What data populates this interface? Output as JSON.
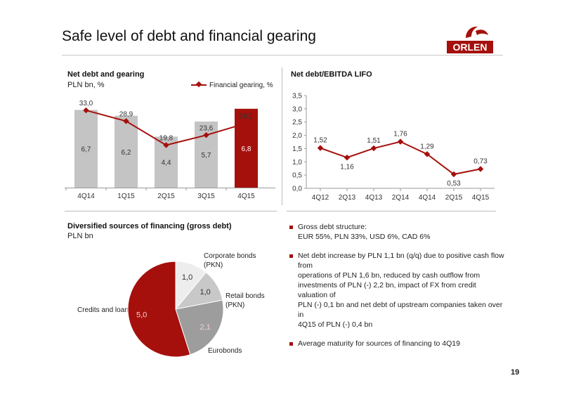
{
  "page": {
    "title": "Safe level of debt and financial gearing",
    "logo_text": "ORLEN",
    "page_number": "19",
    "accent_color": "#a5100c",
    "grey_color": "#c4c4c4"
  },
  "chart_data": [
    {
      "type": "bar",
      "title": "Net debt and gearing",
      "subtitle": "PLN bn, %",
      "categories": [
        "4Q14",
        "1Q15",
        "2Q15",
        "3Q15",
        "4Q15"
      ],
      "series": [
        {
          "values": [
            6.7,
            6.2,
            4.4,
            5.7,
            6.8
          ],
          "labels": [
            "6,7",
            "6,2",
            "4,4",
            "5,7",
            "6,8"
          ]
        },
        {
          "name": "Financial gearing, %",
          "type": "line",
          "values": [
            33.0,
            28.9,
            19.8,
            23.6,
            28.1
          ],
          "labels": [
            "33,0",
            "28,9",
            "19,8",
            "23,6",
            "28,1"
          ]
        }
      ],
      "highlight_index": 4,
      "legend_position": "top-right"
    },
    {
      "type": "line",
      "title": "Net debt/EBITDA LIFO",
      "categories": [
        "4Q12",
        "2Q13",
        "4Q13",
        "2Q14",
        "4Q14",
        "2Q15",
        "4Q15"
      ],
      "values": [
        1.52,
        1.16,
        1.51,
        1.76,
        1.29,
        0.53,
        0.73
      ],
      "labels": [
        "1,52",
        "1,16",
        "1,51",
        "1,76",
        "1,29",
        "0,53",
        "0,73"
      ],
      "ylim": [
        0,
        3.5
      ],
      "yticks": [
        "0,0",
        "0,5",
        "1,0",
        "1,5",
        "2,0",
        "2,5",
        "3,0",
        "3,5"
      ],
      "grid": false
    },
    {
      "type": "pie",
      "title": "Diversified sources of financing (gross debt)",
      "subtitle": "PLN bn",
      "slices": [
        {
          "name": "Credits and loans",
          "value": 5.0,
          "label": "5,0",
          "color": "#a5100c"
        },
        {
          "name": "Corporate bonds (PKN)",
          "value": 1.0,
          "label": "1,0",
          "color": "#ededed"
        },
        {
          "name": "Retail bonds (PKN)",
          "value": 1.0,
          "label": "1,0",
          "color": "#c8c8c8"
        },
        {
          "name": "Eurobonds",
          "value": 2.1,
          "label": "2,1",
          "color": "#9d9d9d"
        }
      ],
      "category_lines": {
        "corporate": [
          "Corporate bonds",
          "(PKN)"
        ],
        "retail": [
          "Retail bonds",
          "(PKN)"
        ]
      }
    }
  ],
  "bullets": [
    {
      "lines": [
        "Gross debt structure:",
        "EUR 55%, PLN 33%, USD 6%, CAD 6%"
      ]
    },
    {
      "lines": [
        "Net debt increase by PLN 1,1 bn (q/q) due to positive cash flow from",
        "operations of PLN 1,6 bn, reduced by cash outflow from",
        "investments of PLN (-) 2,2 bn, impact of FX from credit valuation of",
        "PLN (-) 0,1 bn and net debt of upstream companies taken over in",
        "4Q15 of PLN (-) 0,4 bn"
      ]
    },
    {
      "lines": [
        "Average maturity for sources of financing to 4Q19"
      ]
    }
  ]
}
